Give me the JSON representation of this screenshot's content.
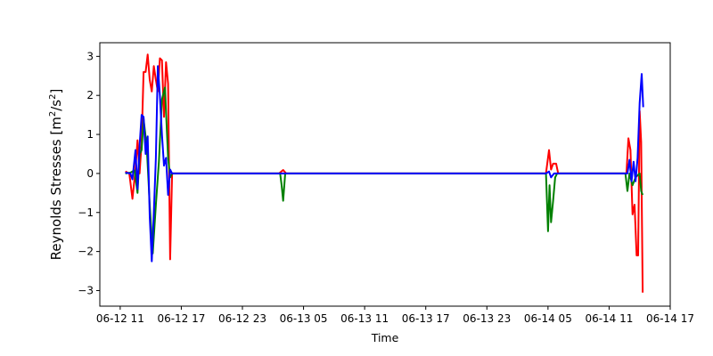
{
  "chart_data": {
    "type": "line",
    "title": "",
    "xlabel": "Time",
    "ylabel_main": "Reynolds Stresses [m",
    "ylabel_sup1": "2",
    "ylabel_mid": "/s",
    "ylabel_sup2": "2",
    "ylabel_end": "]",
    "xlim": [
      9.0,
      65.0
    ],
    "ylim": [
      -3.4,
      3.35
    ],
    "grid": false,
    "x_ticks": [
      {
        "value": 11,
        "label": "06-12 11"
      },
      {
        "value": 17,
        "label": "06-12 17"
      },
      {
        "value": 23,
        "label": "06-12 23"
      },
      {
        "value": 29,
        "label": "06-13 05"
      },
      {
        "value": 35,
        "label": "06-13 11"
      },
      {
        "value": 41,
        "label": "06-13 17"
      },
      {
        "value": 47,
        "label": "06-13 23"
      },
      {
        "value": 53,
        "label": "06-14 05"
      },
      {
        "value": 59,
        "label": "06-14 11"
      },
      {
        "value": 65,
        "label": "06-14 17"
      }
    ],
    "y_ticks": [
      {
        "value": 3,
        "label": "3"
      },
      {
        "value": 2,
        "label": "2"
      },
      {
        "value": 1,
        "label": "1"
      },
      {
        "value": 0,
        "label": "0"
      },
      {
        "value": -1,
        "label": "−1"
      },
      {
        "value": -2,
        "label": "−2"
      },
      {
        "value": -3,
        "label": "−3"
      }
    ],
    "series": [
      {
        "color": "#ff0000",
        "points": [
          [
            11.5,
            0.05
          ],
          [
            11.9,
            0.0
          ],
          [
            12.2,
            -0.65
          ],
          [
            12.5,
            0.1
          ],
          [
            12.7,
            0.85
          ],
          [
            12.9,
            0.0
          ],
          [
            13.1,
            0.8
          ],
          [
            13.3,
            2.6
          ],
          [
            13.5,
            2.6
          ],
          [
            13.7,
            3.05
          ],
          [
            13.9,
            2.4
          ],
          [
            14.1,
            2.1
          ],
          [
            14.3,
            2.75
          ],
          [
            14.5,
            2.4
          ],
          [
            14.7,
            2.1
          ],
          [
            14.9,
            2.95
          ],
          [
            15.1,
            2.9
          ],
          [
            15.3,
            1.45
          ],
          [
            15.5,
            2.85
          ],
          [
            15.7,
            2.3
          ],
          [
            15.9,
            -2.2
          ],
          [
            16.1,
            0.0
          ],
          [
            17.0,
            0.0
          ],
          [
            25.0,
            0.0
          ],
          [
            26.6,
            0.0
          ],
          [
            27.0,
            0.09
          ],
          [
            27.3,
            0.0
          ],
          [
            40.0,
            0.0
          ],
          [
            52.8,
            0.0
          ],
          [
            53.1,
            0.6
          ],
          [
            53.3,
            0.1
          ],
          [
            53.5,
            0.25
          ],
          [
            53.8,
            0.25
          ],
          [
            54.0,
            0.0
          ],
          [
            60.0,
            0.0
          ],
          [
            60.7,
            0.0
          ],
          [
            60.9,
            0.9
          ],
          [
            61.1,
            0.6
          ],
          [
            61.3,
            -1.05
          ],
          [
            61.5,
            -0.8
          ],
          [
            61.7,
            -2.1
          ],
          [
            61.85,
            -2.1
          ],
          [
            62.0,
            1.6
          ],
          [
            62.15,
            0.8
          ],
          [
            62.3,
            -3.05
          ]
        ]
      },
      {
        "color": "#008000",
        "points": [
          [
            11.5,
            0.0
          ],
          [
            12.0,
            0.02
          ],
          [
            12.4,
            0.08
          ],
          [
            12.7,
            -0.5
          ],
          [
            12.9,
            0.5
          ],
          [
            13.1,
            0.6
          ],
          [
            13.3,
            1.4
          ],
          [
            13.6,
            0.7
          ],
          [
            13.9,
            -0.8
          ],
          [
            14.2,
            -2.05
          ],
          [
            14.5,
            -0.8
          ],
          [
            14.8,
            0.3
          ],
          [
            15.1,
            1.9
          ],
          [
            15.4,
            2.2
          ],
          [
            15.7,
            0.4
          ],
          [
            15.9,
            -0.1
          ],
          [
            16.1,
            0.0
          ],
          [
            20.0,
            0.0
          ],
          [
            26.7,
            0.0
          ],
          [
            26.85,
            -0.3
          ],
          [
            27.0,
            -0.7
          ],
          [
            27.2,
            0.0
          ],
          [
            40.0,
            0.0
          ],
          [
            52.8,
            0.0
          ],
          [
            53.0,
            -1.48
          ],
          [
            53.15,
            -0.3
          ],
          [
            53.3,
            -1.25
          ],
          [
            53.5,
            -0.7
          ],
          [
            53.7,
            -0.1
          ],
          [
            53.9,
            0.0
          ],
          [
            60.0,
            0.0
          ],
          [
            60.6,
            0.0
          ],
          [
            60.8,
            -0.45
          ],
          [
            61.0,
            0.0
          ],
          [
            61.3,
            -0.3
          ],
          [
            61.6,
            -0.1
          ],
          [
            62.0,
            0.0
          ],
          [
            62.15,
            -0.45
          ],
          [
            62.3,
            -0.55
          ]
        ]
      },
      {
        "color": "#0000ff",
        "points": [
          [
            11.5,
            0.02
          ],
          [
            12.0,
            0.0
          ],
          [
            12.2,
            -0.15
          ],
          [
            12.5,
            0.6
          ],
          [
            12.7,
            -0.4
          ],
          [
            12.9,
            0.7
          ],
          [
            13.1,
            1.5
          ],
          [
            13.3,
            1.45
          ],
          [
            13.5,
            0.5
          ],
          [
            13.7,
            0.95
          ],
          [
            13.9,
            -1.1
          ],
          [
            14.1,
            -2.25
          ],
          [
            14.3,
            -1.0
          ],
          [
            14.5,
            0.4
          ],
          [
            14.7,
            2.75
          ],
          [
            14.9,
            2.0
          ],
          [
            15.1,
            1.0
          ],
          [
            15.3,
            0.2
          ],
          [
            15.5,
            0.4
          ],
          [
            15.7,
            -0.55
          ],
          [
            15.9,
            0.1
          ],
          [
            16.1,
            0.0
          ],
          [
            20.0,
            0.0
          ],
          [
            40.0,
            0.0
          ],
          [
            52.8,
            0.0
          ],
          [
            53.1,
            0.05
          ],
          [
            53.3,
            -0.1
          ],
          [
            53.6,
            0.0
          ],
          [
            54.0,
            0.0
          ],
          [
            60.0,
            0.0
          ],
          [
            60.8,
            0.0
          ],
          [
            61.0,
            0.35
          ],
          [
            61.2,
            -0.2
          ],
          [
            61.4,
            0.3
          ],
          [
            61.6,
            -0.2
          ],
          [
            61.8,
            0.4
          ],
          [
            62.0,
            1.8
          ],
          [
            62.2,
            2.55
          ],
          [
            62.35,
            1.7
          ]
        ]
      }
    ]
  }
}
